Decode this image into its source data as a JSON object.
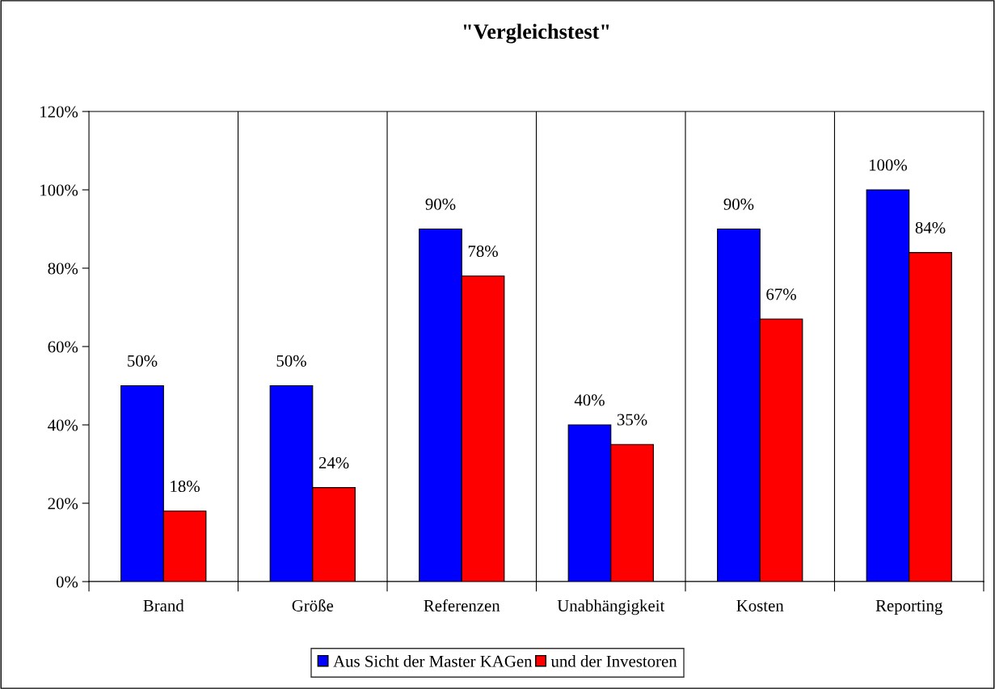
{
  "chart_data": {
    "type": "bar",
    "title": "\"Vergleichstest\"",
    "categories": [
      "Brand",
      "Größe",
      "Referenzen",
      "Unabhängigkeit",
      "Kosten",
      "Reporting"
    ],
    "series": [
      {
        "name": "Aus Sicht der Master KAGen",
        "color": "#0000ff",
        "values": [
          50,
          50,
          90,
          40,
          90,
          100
        ],
        "value_labels": [
          "50%",
          "50%",
          "90%",
          "40%",
          "90%",
          "100%"
        ]
      },
      {
        "name": "und der Investoren",
        "color": "#ff0000",
        "values": [
          18,
          24,
          78,
          35,
          67,
          84
        ],
        "value_labels": [
          "18%",
          "24%",
          "78%",
          "35%",
          "67%",
          "84%"
        ]
      }
    ],
    "ylim": [
      0,
      120
    ],
    "yticks": [
      {
        "value": 0,
        "label": "0%"
      },
      {
        "value": 20,
        "label": "20%"
      },
      {
        "value": 40,
        "label": "40%"
      },
      {
        "value": 60,
        "label": "60%"
      },
      {
        "value": 80,
        "label": "80%"
      },
      {
        "value": 100,
        "label": "100%"
      },
      {
        "value": 120,
        "label": "120%"
      }
    ],
    "grid": "x",
    "legend": "bottom"
  }
}
